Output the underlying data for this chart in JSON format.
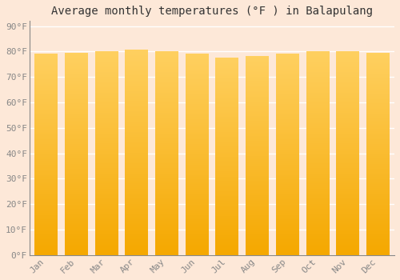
{
  "months": [
    "Jan",
    "Feb",
    "Mar",
    "Apr",
    "May",
    "Jun",
    "Jul",
    "Aug",
    "Sep",
    "Oct",
    "Nov",
    "Dec"
  ],
  "values": [
    79.0,
    79.5,
    80.0,
    80.5,
    80.0,
    79.0,
    77.5,
    78.0,
    79.0,
    80.0,
    80.0,
    79.5
  ],
  "bar_color_light": "#FFD060",
  "bar_color_dark": "#F5A800",
  "background_color": "#fde8d8",
  "plot_bg_color": "#fde8d8",
  "grid_color": "#ffffff",
  "title": "Average monthly temperatures (°F ) in Balapulang",
  "title_fontsize": 10,
  "ylabel_ticks": [
    0,
    10,
    20,
    30,
    40,
    50,
    60,
    70,
    80,
    90
  ],
  "ylim": [
    0,
    92
  ],
  "tick_fontsize": 8,
  "tick_font_color": "#888888",
  "font_family": "monospace"
}
